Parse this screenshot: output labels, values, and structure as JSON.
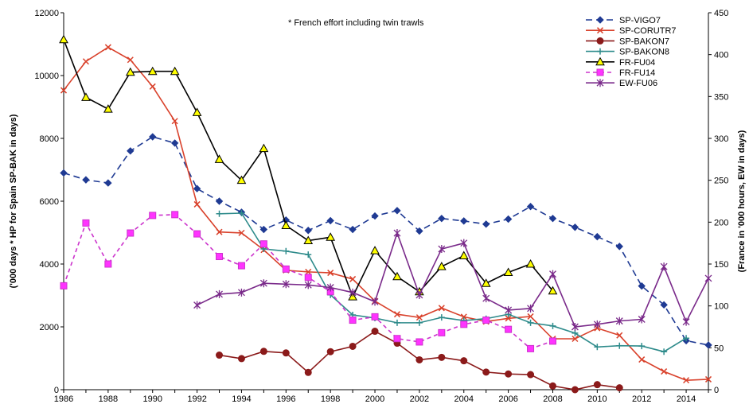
{
  "chart_data": {
    "type": "line",
    "annotation": "* French effort including twin trawls",
    "ylabel_left": "('000 days * HP for Spain SP-BAK in days)",
    "ylabel_right": "(France in '000 hours, EW in days)",
    "xlim": [
      1986,
      2015
    ],
    "ylim_left": [
      0,
      12000
    ],
    "ylim_right": [
      0,
      450
    ],
    "x_ticks": [
      "1986",
      "1988",
      "1990",
      "1992",
      "1994",
      "1996",
      "1998",
      "2000",
      "2002",
      "2004",
      "2006",
      "2008",
      "2010",
      "2012",
      "2014"
    ],
    "y_left_ticks": [
      "0",
      "2000",
      "4000",
      "6000",
      "8000",
      "10000",
      "12000"
    ],
    "y_right_ticks": [
      "0",
      "50",
      "100",
      "150",
      "200",
      "250",
      "300",
      "350",
      "400",
      "450"
    ],
    "legend_position": "top-right",
    "series": [
      {
        "name": "SP-VIGO7",
        "axis": "left",
        "color": "#1f3a93",
        "dash": "8,5",
        "marker": "diamond",
        "x": [
          1986,
          1987,
          1988,
          1989,
          1990,
          1991,
          1992,
          1993,
          1994,
          1995,
          1996,
          1997,
          1998,
          1999,
          2000,
          2001,
          2002,
          2003,
          2004,
          2005,
          2006,
          2007,
          2008,
          2009,
          2010,
          2011,
          2012,
          2013,
          2014,
          2015
        ],
        "y": [
          6900,
          6680,
          6580,
          7600,
          8050,
          7850,
          6400,
          6000,
          5650,
          5100,
          5400,
          5070,
          5380,
          5100,
          5530,
          5700,
          5050,
          5450,
          5370,
          5270,
          5430,
          5830,
          5450,
          5170,
          4870,
          4560,
          3300,
          2700,
          1560,
          1420
        ]
      },
      {
        "name": "SP-CORUTR7",
        "axis": "left",
        "color": "#d9412b",
        "dash": "",
        "marker": "x",
        "x": [
          1986,
          1987,
          1988,
          1989,
          1990,
          1991,
          1992,
          1993,
          1994,
          1995,
          1996,
          1997,
          1998,
          1999,
          2000,
          2001,
          2002,
          2003,
          2004,
          2005,
          2006,
          2007,
          2008,
          2009,
          2010,
          2011,
          2012,
          2013,
          2014,
          2015
        ],
        "y": [
          9530,
          10450,
          10900,
          10500,
          9650,
          8550,
          5900,
          5020,
          4990,
          4450,
          3800,
          3750,
          3720,
          3520,
          2820,
          2400,
          2300,
          2600,
          2320,
          2170,
          2270,
          2330,
          1620,
          1620,
          1960,
          1730,
          960,
          580,
          300,
          330
        ]
      },
      {
        "name": "SP-BAKON7",
        "axis": "left",
        "color": "#8b1a1a",
        "dash": "",
        "marker": "circle",
        "x": [
          1993,
          1994,
          1995,
          1996,
          1997,
          1998,
          1999,
          2000,
          2001,
          2002,
          2003,
          2004,
          2005,
          2006,
          2007,
          2008,
          2009,
          2010,
          2011
        ],
        "y": [
          1100,
          990,
          1220,
          1170,
          550,
          1210,
          1380,
          1860,
          1480,
          950,
          1030,
          920,
          560,
          500,
          480,
          120,
          0,
          160,
          60
        ]
      },
      {
        "name": "SP-BAKON8",
        "axis": "left",
        "color": "#2e8b8b",
        "dash": "",
        "marker": "plus",
        "x": [
          1993,
          1994,
          1995,
          1996,
          1997,
          1998,
          1999,
          2000,
          2001,
          2002,
          2003,
          2004,
          2005,
          2006,
          2007,
          2008,
          2009,
          2010,
          2011,
          2012,
          2013,
          2014
        ],
        "y": [
          5600,
          5620,
          4480,
          4410,
          4300,
          3020,
          2380,
          2280,
          2130,
          2130,
          2300,
          2200,
          2260,
          2400,
          2130,
          2030,
          1800,
          1360,
          1400,
          1390,
          1210,
          1640
        ]
      },
      {
        "name": "FR-FU04",
        "axis": "right",
        "color": "#000000",
        "dash": "",
        "marker": "triangle",
        "x": [
          1986,
          1987,
          1988,
          1989,
          1990,
          1991,
          1992,
          1993,
          1994,
          1995,
          1996,
          1997,
          1998,
          1999,
          2000,
          2001,
          2002,
          2003,
          2004,
          2005,
          2006,
          2007,
          2008
        ],
        "y": [
          418,
          349,
          335,
          379,
          380,
          380,
          331,
          275,
          250,
          288,
          196,
          178,
          182,
          111,
          166,
          135,
          117,
          147,
          160,
          127,
          140,
          150,
          118
        ]
      },
      {
        "name": "FR-FU14",
        "axis": "right",
        "color": "#cc33cc",
        "dash": "5,4",
        "marker": "square",
        "x": [
          1986,
          1987,
          1988,
          1989,
          1990,
          1991,
          1992,
          1993,
          1994,
          1995,
          1996,
          1997,
          1998,
          1999,
          2000,
          2001,
          2002,
          2003,
          2004,
          2005,
          2006,
          2007,
          2008
        ],
        "y": [
          124,
          199,
          150,
          187,
          208,
          209,
          186,
          159,
          148,
          174,
          144,
          134,
          117,
          83,
          87,
          61,
          57,
          68,
          78,
          83,
          72,
          49,
          58
        ]
      },
      {
        "name": "EW-FU06",
        "axis": "right",
        "color": "#7a2a8a",
        "dash": "",
        "marker": "star",
        "x": [
          1992,
          1993,
          1994,
          1995,
          1996,
          1997,
          1998,
          1999,
          2000,
          2001,
          2002,
          2003,
          2004,
          2005,
          2006,
          2007,
          2008,
          2009,
          2010,
          2011,
          2012,
          2013,
          2014,
          2015
        ],
        "y": [
          101,
          114,
          116,
          127,
          126,
          125,
          122,
          116,
          105,
          187,
          113,
          168,
          175,
          109,
          95,
          97,
          138,
          75,
          78,
          82,
          84,
          147,
          81,
          133
        ]
      }
    ]
  }
}
